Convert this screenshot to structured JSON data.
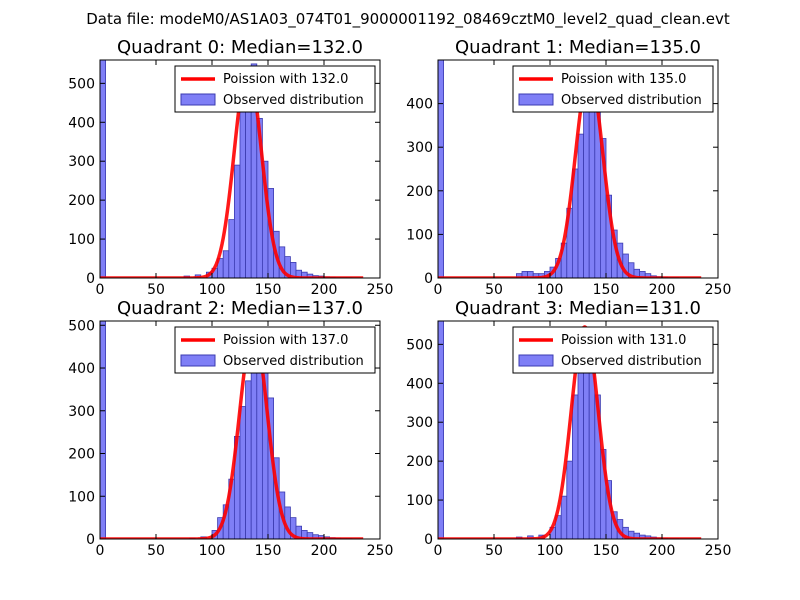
{
  "figure": {
    "suptitle": "Data file: modeM0/AS1A03_074T01_9000001192_08469cztM0_level2_quad_clean.evt"
  },
  "colors": {
    "fit_line": "#ff0000",
    "bar_fill": "#7f7ff6",
    "bar_edge": "#3b3bb0"
  },
  "chart_data": [
    {
      "type": "bar",
      "title": "Quadrant 0: Median=132.0",
      "xlim": [
        0,
        250
      ],
      "ylim": [
        0,
        560
      ],
      "xticks": [
        0,
        50,
        100,
        150,
        200,
        250
      ],
      "yticks": [
        0,
        100,
        200,
        300,
        400,
        500
      ],
      "legend": {
        "placement": "top-right",
        "entries": [
          "Poission with 132.0",
          "Observed distribution"
        ]
      },
      "series": [
        {
          "name": "Observed distribution",
          "kind": "histogram",
          "bin_width": 5,
          "bins": [
            [
              0,
              560
            ],
            [
              75,
              5
            ],
            [
              85,
              8
            ],
            [
              95,
              15
            ],
            [
              100,
              25
            ],
            [
              105,
              50
            ],
            [
              110,
              70
            ],
            [
              115,
              150
            ],
            [
              120,
              290
            ],
            [
              125,
              430
            ],
            [
              130,
              460
            ],
            [
              135,
              550
            ],
            [
              140,
              410
            ],
            [
              145,
              300
            ],
            [
              150,
              230
            ],
            [
              155,
              120
            ],
            [
              160,
              80
            ],
            [
              165,
              55
            ],
            [
              170,
              40
            ],
            [
              175,
              20
            ],
            [
              180,
              15
            ],
            [
              185,
              10
            ],
            [
              190,
              6
            ],
            [
              195,
              5
            ],
            [
              200,
              3
            ],
            [
              205,
              2
            ],
            [
              210,
              1
            ],
            [
              215,
              1
            ],
            [
              220,
              1
            ]
          ]
        },
        {
          "name": "Poission with 132.0",
          "kind": "poisson",
          "mean": 132.0,
          "peak": 540
        }
      ]
    },
    {
      "type": "bar",
      "title": "Quadrant 1: Median=135.0",
      "xlim": [
        0,
        250
      ],
      "ylim": [
        0,
        500
      ],
      "xticks": [
        0,
        50,
        100,
        150,
        200,
        250
      ],
      "yticks": [
        0,
        100,
        200,
        300,
        400
      ],
      "legend": {
        "placement": "top-right",
        "entries": [
          "Poission with 135.0",
          "Observed distribution"
        ]
      },
      "series": [
        {
          "name": "Observed distribution",
          "kind": "histogram",
          "bin_width": 5,
          "bins": [
            [
              0,
              500
            ],
            [
              70,
              10
            ],
            [
              75,
              15
            ],
            [
              80,
              15
            ],
            [
              85,
              10
            ],
            [
              90,
              10
            ],
            [
              95,
              15
            ],
            [
              100,
              25
            ],
            [
              105,
              45
            ],
            [
              110,
              80
            ],
            [
              115,
              160
            ],
            [
              120,
              250
            ],
            [
              125,
              330
            ],
            [
              130,
              410
            ],
            [
              135,
              460
            ],
            [
              140,
              390
            ],
            [
              145,
              320
            ],
            [
              150,
              190
            ],
            [
              155,
              110
            ],
            [
              160,
              80
            ],
            [
              165,
              55
            ],
            [
              170,
              35
            ],
            [
              175,
              20
            ],
            [
              180,
              15
            ],
            [
              185,
              10
            ],
            [
              190,
              5
            ],
            [
              195,
              3
            ],
            [
              200,
              2
            ],
            [
              205,
              1
            ],
            [
              210,
              1
            ]
          ]
        },
        {
          "name": "Poission with 135.0",
          "kind": "poisson",
          "mean": 135.0,
          "peak": 470
        }
      ]
    },
    {
      "type": "bar",
      "title": "Quadrant 2: Median=137.0",
      "xlim": [
        0,
        250
      ],
      "ylim": [
        0,
        510
      ],
      "xticks": [
        0,
        50,
        100,
        150,
        200,
        250
      ],
      "yticks": [
        0,
        100,
        200,
        300,
        400,
        500
      ],
      "legend": {
        "placement": "top-right",
        "entries": [
          "Poission with 137.0",
          "Observed distribution"
        ]
      },
      "series": [
        {
          "name": "Observed distribution",
          "kind": "histogram",
          "bin_width": 5,
          "bins": [
            [
              0,
              510
            ],
            [
              80,
              2
            ],
            [
              90,
              5
            ],
            [
              100,
              20
            ],
            [
              105,
              50
            ],
            [
              110,
              80
            ],
            [
              115,
              140
            ],
            [
              120,
              240
            ],
            [
              125,
              310
            ],
            [
              130,
              370
            ],
            [
              135,
              420
            ],
            [
              140,
              480
            ],
            [
              145,
              400
            ],
            [
              150,
              330
            ],
            [
              155,
              190
            ],
            [
              160,
              110
            ],
            [
              165,
              75
            ],
            [
              170,
              50
            ],
            [
              175,
              30
            ],
            [
              180,
              20
            ],
            [
              185,
              15
            ],
            [
              190,
              10
            ],
            [
              195,
              8
            ],
            [
              200,
              5
            ],
            [
              205,
              3
            ],
            [
              210,
              2
            ],
            [
              215,
              1
            ],
            [
              220,
              1
            ]
          ]
        },
        {
          "name": "Poission with 137.0",
          "kind": "poisson",
          "mean": 137.0,
          "peak": 490
        }
      ]
    },
    {
      "type": "bar",
      "title": "Quadrant 3: Median=131.0",
      "xlim": [
        0,
        250
      ],
      "ylim": [
        0,
        560
      ],
      "xticks": [
        0,
        50,
        100,
        150,
        200,
        250
      ],
      "yticks": [
        0,
        100,
        200,
        300,
        400,
        500
      ],
      "legend": {
        "placement": "top-right",
        "entries": [
          "Poission with 131.0",
          "Observed distribution"
        ]
      },
      "series": [
        {
          "name": "Observed distribution",
          "kind": "histogram",
          "bin_width": 5,
          "bins": [
            [
              0,
              560
            ],
            [
              70,
              5
            ],
            [
              80,
              8
            ],
            [
              90,
              10
            ],
            [
              100,
              30
            ],
            [
              105,
              60
            ],
            [
              110,
              110
            ],
            [
              115,
              200
            ],
            [
              120,
              370
            ],
            [
              125,
              440
            ],
            [
              130,
              520
            ],
            [
              135,
              460
            ],
            [
              140,
              370
            ],
            [
              145,
              230
            ],
            [
              150,
              150
            ],
            [
              155,
              70
            ],
            [
              160,
              50
            ],
            [
              165,
              30
            ],
            [
              170,
              20
            ],
            [
              175,
              15
            ],
            [
              180,
              10
            ],
            [
              185,
              8
            ],
            [
              190,
              5
            ],
            [
              195,
              3
            ],
            [
              200,
              2
            ],
            [
              205,
              1
            ],
            [
              210,
              1
            ]
          ]
        },
        {
          "name": "Poission with 131.0",
          "kind": "poisson",
          "mean": 131.0,
          "peak": 545
        }
      ]
    }
  ]
}
